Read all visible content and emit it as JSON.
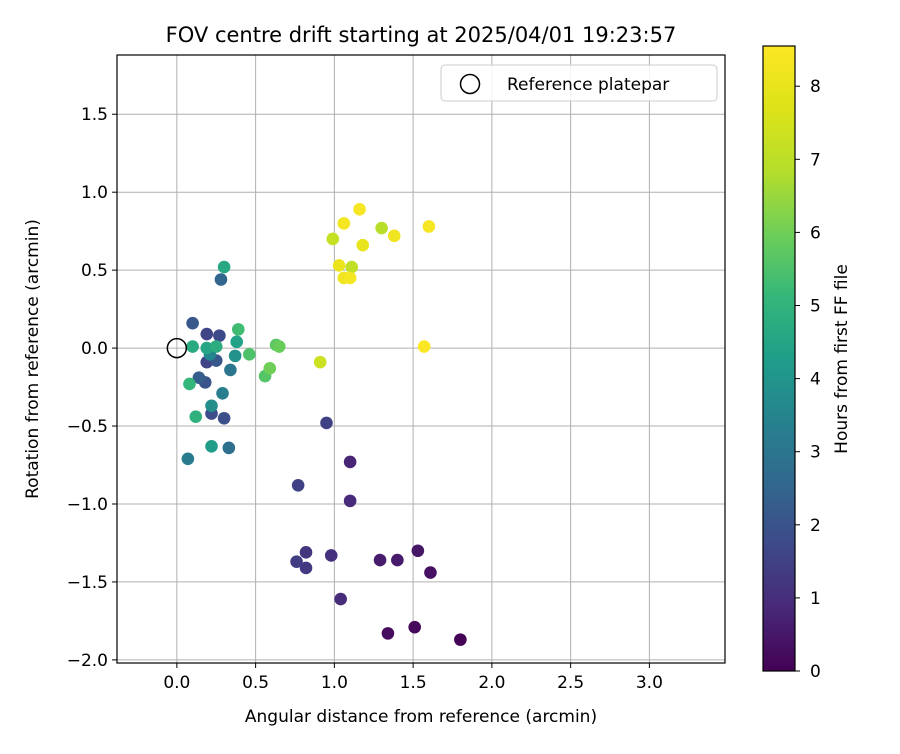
{
  "chart_data": {
    "type": "scatter",
    "title": "FOV centre drift starting at 2025/04/01 19:23:57",
    "xlabel": "Angular distance from reference (arcmin)",
    "ylabel": "Rotation from reference (arcmin)",
    "xlim": [
      -0.38,
      3.48
    ],
    "ylim": [
      -2.02,
      1.88
    ],
    "xticks": [
      0.0,
      0.5,
      1.0,
      1.5,
      2.0,
      2.5,
      3.0
    ],
    "xtick_labels": [
      "0.0",
      "0.5",
      "1.0",
      "1.5",
      "2.0",
      "2.5",
      "3.0"
    ],
    "yticks": [
      -2.0,
      -1.5,
      -1.0,
      -0.5,
      0.0,
      0.5,
      1.0,
      1.5
    ],
    "ytick_labels": [
      "−2.0",
      "−1.5",
      "−1.0",
      "−0.5",
      "0.0",
      "0.5",
      "1.0",
      "1.5"
    ],
    "grid": true,
    "legend": {
      "placement": "top-right",
      "entries": [
        "Reference platepar"
      ]
    },
    "reference_point": {
      "x": 0.0,
      "y": 0.0
    },
    "colorbar": {
      "label": "Hours from first FF file",
      "colormap": "viridis",
      "range": [
        0,
        8.55
      ],
      "ticks": [
        0,
        1,
        2,
        3,
        4,
        5,
        6,
        7,
        8
      ],
      "tick_labels": [
        "0",
        "1",
        "2",
        "3",
        "4",
        "5",
        "6",
        "7",
        "8"
      ]
    },
    "points": [
      {
        "x": 1.8,
        "y": -1.87,
        "hours": 0.05
      },
      {
        "x": 1.51,
        "y": -1.79,
        "hours": 0.15
      },
      {
        "x": 1.34,
        "y": -1.83,
        "hours": 0.25
      },
      {
        "x": 1.61,
        "y": -1.44,
        "hours": 0.35
      },
      {
        "x": 1.53,
        "y": -1.3,
        "hours": 0.45
      },
      {
        "x": 1.4,
        "y": -1.36,
        "hours": 0.55
      },
      {
        "x": 1.29,
        "y": -1.36,
        "hours": 0.6
      },
      {
        "x": 1.1,
        "y": -0.73,
        "hours": 0.8
      },
      {
        "x": 1.1,
        "y": -0.98,
        "hours": 0.9
      },
      {
        "x": 1.04,
        "y": -1.61,
        "hours": 0.95
      },
      {
        "x": 0.98,
        "y": -1.33,
        "hours": 1.1
      },
      {
        "x": 0.82,
        "y": -1.31,
        "hours": 1.2
      },
      {
        "x": 0.82,
        "y": -1.41,
        "hours": 1.3
      },
      {
        "x": 0.76,
        "y": -1.37,
        "hours": 1.4
      },
      {
        "x": 0.77,
        "y": -0.88,
        "hours": 1.5
      },
      {
        "x": 0.95,
        "y": -0.48,
        "hours": 1.5
      },
      {
        "x": 0.19,
        "y": -0.09,
        "hours": 1.6
      },
      {
        "x": 0.19,
        "y": 0.09,
        "hours": 1.6
      },
      {
        "x": 0.27,
        "y": 0.08,
        "hours": 1.7
      },
      {
        "x": 0.22,
        "y": -0.42,
        "hours": 1.8
      },
      {
        "x": 0.3,
        "y": -0.45,
        "hours": 1.9
      },
      {
        "x": 0.18,
        "y": -0.22,
        "hours": 2.0
      },
      {
        "x": 0.25,
        "y": -0.08,
        "hours": 2.1
      },
      {
        "x": 0.1,
        "y": 0.16,
        "hours": 2.1
      },
      {
        "x": 0.14,
        "y": -0.19,
        "hours": 2.3
      },
      {
        "x": 0.28,
        "y": 0.44,
        "hours": 2.5
      },
      {
        "x": 0.33,
        "y": -0.64,
        "hours": 2.8
      },
      {
        "x": 0.34,
        "y": -0.14,
        "hours": 3.0
      },
      {
        "x": 0.07,
        "y": -0.71,
        "hours": 3.2
      },
      {
        "x": 0.29,
        "y": -0.29,
        "hours": 3.3
      },
      {
        "x": 0.21,
        "y": -0.04,
        "hours": 3.5
      },
      {
        "x": 0.22,
        "y": -0.37,
        "hours": 3.8
      },
      {
        "x": 0.37,
        "y": -0.05,
        "hours": 3.9
      },
      {
        "x": 0.22,
        "y": -0.63,
        "hours": 4.2
      },
      {
        "x": 0.38,
        "y": 0.04,
        "hours": 4.4
      },
      {
        "x": 0.19,
        "y": 0.0,
        "hours": 4.5
      },
      {
        "x": 0.3,
        "y": 0.52,
        "hours": 4.6
      },
      {
        "x": 0.1,
        "y": 0.01,
        "hours": 4.7
      },
      {
        "x": 0.25,
        "y": 0.01,
        "hours": 4.8
      },
      {
        "x": 0.12,
        "y": -0.44,
        "hours": 4.9
      },
      {
        "x": 0.08,
        "y": -0.23,
        "hours": 5.1
      },
      {
        "x": 0.39,
        "y": 0.12,
        "hours": 5.3
      },
      {
        "x": 0.46,
        "y": -0.04,
        "hours": 5.5
      },
      {
        "x": 0.56,
        "y": -0.18,
        "hours": 5.6
      },
      {
        "x": 0.63,
        "y": 0.02,
        "hours": 5.7
      },
      {
        "x": 0.65,
        "y": 0.01,
        "hours": 5.9
      },
      {
        "x": 0.59,
        "y": -0.13,
        "hours": 6.0
      },
      {
        "x": 1.3,
        "y": 0.77,
        "hours": 6.9
      },
      {
        "x": 1.11,
        "y": 0.52,
        "hours": 7.1
      },
      {
        "x": 0.99,
        "y": 0.7,
        "hours": 7.2
      },
      {
        "x": 0.91,
        "y": -0.09,
        "hours": 7.3
      },
      {
        "x": 1.18,
        "y": 0.66,
        "hours": 8.0
      },
      {
        "x": 1.03,
        "y": 0.53,
        "hours": 8.1
      },
      {
        "x": 1.38,
        "y": 0.72,
        "hours": 8.2
      },
      {
        "x": 1.06,
        "y": 0.45,
        "hours": 8.2
      },
      {
        "x": 1.1,
        "y": 0.45,
        "hours": 8.3
      },
      {
        "x": 1.06,
        "y": 0.8,
        "hours": 8.3
      },
      {
        "x": 1.16,
        "y": 0.89,
        "hours": 8.4
      },
      {
        "x": 1.6,
        "y": 0.78,
        "hours": 8.4
      },
      {
        "x": 1.57,
        "y": 0.01,
        "hours": 8.5
      }
    ]
  }
}
